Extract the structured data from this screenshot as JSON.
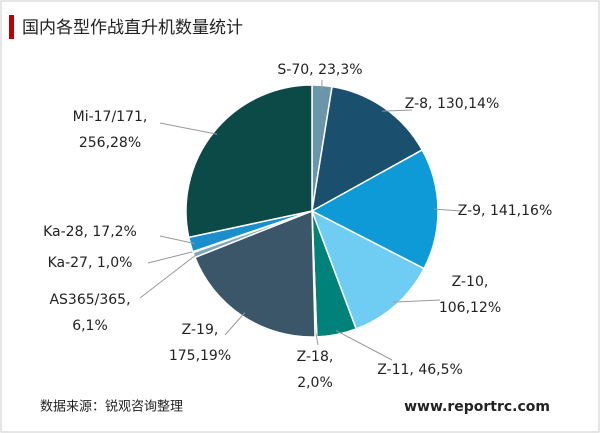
{
  "chart_data": {
    "type": "pie",
    "title": "国内各型作战直升机数量统计",
    "values": [
      23,
      130,
      141,
      106,
      46,
      2,
      175,
      6,
      1,
      17,
      256
    ],
    "labels": [
      [
        "S-70, 23,3%"
      ],
      [
        "Z-8, 130,14%"
      ],
      [
        "Z-9, 141,16%"
      ],
      [
        "Z-10,",
        "106,12%"
      ],
      [
        "Z-11, 46,5%"
      ],
      [
        "Z-18,",
        "2,0%"
      ],
      [
        "Z-19,",
        "175,19%"
      ],
      [
        "AS365/365,",
        "6,1%"
      ],
      [
        "Ka-27, 1,0%"
      ],
      [
        "Ka-28, 17,2%"
      ],
      [
        "Mi-17/171,",
        "256,28%"
      ]
    ],
    "colors": [
      "#6b95aa",
      "#1b4f6e",
      "#0e9ad6",
      "#6fcdf3",
      "#00827b",
      "#2a6a86",
      "#3b5668",
      "#7fa8bd",
      "#1d3a4a",
      "#1a8fcb",
      "#0c4a47"
    ],
    "source": "数据来源：锐观咨询整理",
    "website": "www.reportrc.com"
  }
}
